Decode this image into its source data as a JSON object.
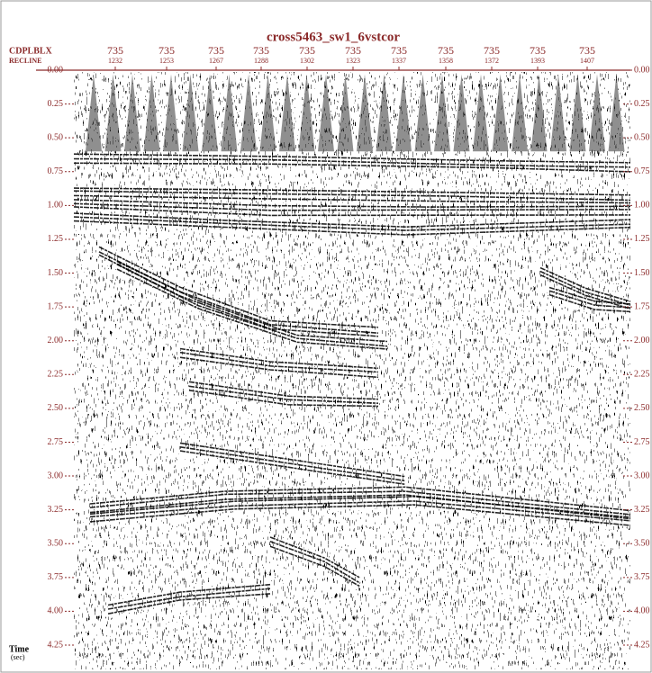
{
  "chart_data": {
    "type": "seismic",
    "title": "cross5463_sw1_6vstcor",
    "header_rows": [
      {
        "label": "CDPLBLX",
        "values": [
          "735",
          "735",
          "735",
          "735",
          "735",
          "735",
          "735",
          "735",
          "735",
          "735",
          "735"
        ]
      },
      {
        "label": "RECLINE",
        "values": [
          "1232",
          "1253",
          "1267",
          "1288",
          "1302",
          "1323",
          "1337",
          "1358",
          "1372",
          "1393",
          "1407"
        ]
      }
    ],
    "ylabel": "Time",
    "yunit": "(sec)",
    "ylim": [
      0,
      4.3
    ],
    "yticks": [
      {
        "value": 0,
        "label": "0.00"
      },
      {
        "value": 0.25,
        "label": "0.25"
      },
      {
        "value": 0.5,
        "label": "0.50"
      },
      {
        "value": 0.75,
        "label": "0.75"
      },
      {
        "value": 1,
        "label": "1.00"
      },
      {
        "value": 1.25,
        "label": "1.25"
      },
      {
        "value": 1.5,
        "label": "1.50"
      },
      {
        "value": 1.75,
        "label": "1.75"
      },
      {
        "value": 2,
        "label": "2.00"
      },
      {
        "value": 2.25,
        "label": "2.25"
      },
      {
        "value": 2.5,
        "label": "2.50"
      },
      {
        "value": 2.75,
        "label": "2.75"
      },
      {
        "value": 3,
        "label": "3.00"
      },
      {
        "value": 3.25,
        "label": "3.25"
      },
      {
        "value": 3.5,
        "label": "3.50"
      },
      {
        "value": 3.75,
        "label": "3.75"
      },
      {
        "value": 4,
        "label": "4.00"
      },
      {
        "value": 4.25,
        "label": "4.25"
      }
    ],
    "axis_color": "#8b2a2a"
  }
}
